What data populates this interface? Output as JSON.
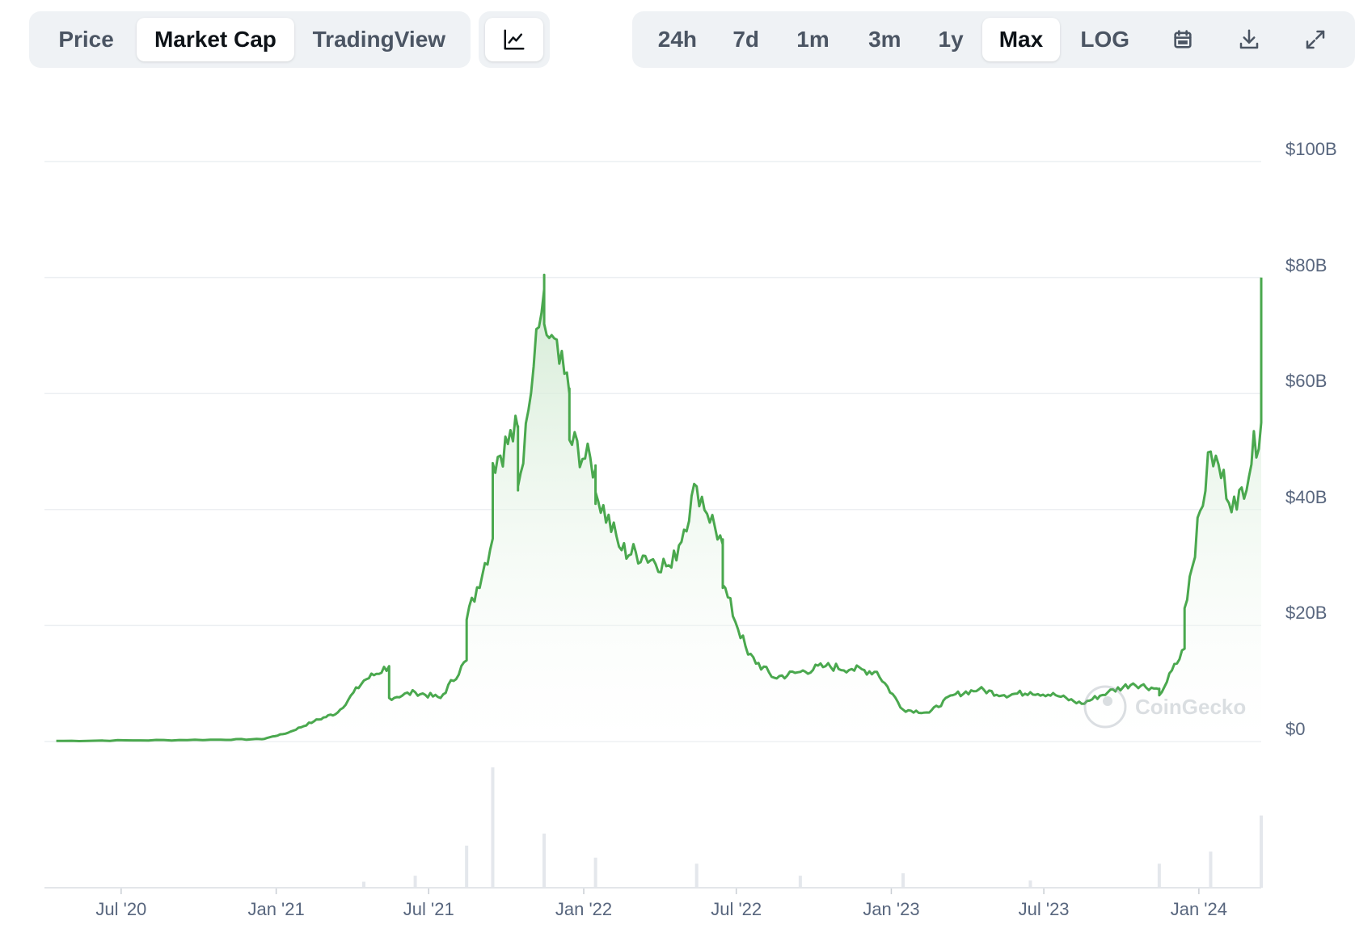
{
  "toolbar": {
    "tabs": [
      {
        "label": "Price",
        "active": false
      },
      {
        "label": "Market Cap",
        "active": true
      },
      {
        "label": "TradingView",
        "active": false
      }
    ],
    "chart_type_icon": "line-chart-icon",
    "ranges": [
      {
        "label": "24h",
        "active": false
      },
      {
        "label": "7d",
        "active": false
      },
      {
        "label": "1m",
        "active": false
      },
      {
        "label": "3m",
        "active": false
      },
      {
        "label": "1y",
        "active": false
      },
      {
        "label": "Max",
        "active": true
      },
      {
        "label": "LOG",
        "active": false
      }
    ],
    "icons": [
      "calendar-icon",
      "download-icon",
      "fullscreen-icon"
    ]
  },
  "watermark": {
    "text": "CoinGecko",
    "icon": "coingecko-logo"
  },
  "colors": {
    "line": "#4aa84e",
    "fill_top": "#cde8ce",
    "grid": "#eceff2",
    "text": "#58667e"
  },
  "chart_data": {
    "type": "area",
    "title": "",
    "xlabel": "",
    "ylabel": "",
    "ylim": [
      0,
      100
    ],
    "y_unit": "$B",
    "y_ticks": [
      "$0",
      "$20B",
      "$40B",
      "$60B",
      "$80B",
      "$100B"
    ],
    "x_ticks": [
      "Jul '20",
      "Jan '21",
      "Jul '21",
      "Jan '22",
      "Jul '22",
      "Jan '23",
      "Jul '23",
      "Jan '24"
    ],
    "grid": true,
    "series": [
      {
        "values_note": "market cap in $B; dates as YYYY-MM",
        "x": [
          "2020-04",
          "2020-07",
          "2020-10",
          "2020-12",
          "2021-01",
          "2021-02",
          "2021-03",
          "2021-04",
          "2021-05",
          "2021-05",
          "2021-06",
          "2021-07",
          "2021-08",
          "2021-08",
          "2021-09",
          "2021-09",
          "2021-10",
          "2021-10",
          "2021-11",
          "2021-11",
          "2021-12",
          "2021-12",
          "2022-01",
          "2022-01",
          "2022-02",
          "2022-03",
          "2022-04",
          "2022-05",
          "2022-06",
          "2022-06",
          "2022-07",
          "2022-08",
          "2022-09",
          "2022-10",
          "2022-11",
          "2022-12",
          "2023-01",
          "2023-02",
          "2023-03",
          "2023-04",
          "2023-05",
          "2023-06",
          "2023-07",
          "2023-08",
          "2023-09",
          "2023-10",
          "2023-11",
          "2023-11",
          "2023-12",
          "2023-12",
          "2024-01",
          "2024-02",
          "2024-03",
          "2024-03"
        ],
        "values": [
          0.1,
          0.2,
          0.3,
          0.4,
          1.5,
          3.5,
          5.0,
          10.5,
          13.0,
          7.5,
          8.5,
          7.5,
          14.0,
          21.0,
          35.0,
          48.0,
          54.0,
          44.0,
          78.0,
          72.0,
          60.0,
          52.0,
          47.0,
          43.0,
          33.0,
          32.0,
          30.0,
          44.0,
          34.0,
          27.0,
          15.0,
          11.0,
          12.0,
          13.0,
          12.5,
          12.0,
          5.5,
          5.0,
          8.0,
          9.0,
          8.0,
          8.5,
          8.0,
          6.5,
          8.5,
          10.0,
          9.0,
          8.0,
          16.0,
          23.0,
          50.0,
          40.0,
          55.0,
          80.0
        ]
      }
    ],
    "volume": {
      "note": "relative trading volume bars, 0-1",
      "x": [
        "2021-04",
        "2021-06",
        "2021-08",
        "2021-09",
        "2021-11",
        "2022-01",
        "2022-05",
        "2022-09",
        "2023-01",
        "2023-06",
        "2023-11",
        "2024-01",
        "2024-03"
      ],
      "values": [
        0.05,
        0.1,
        0.35,
        1.0,
        0.45,
        0.25,
        0.2,
        0.1,
        0.12,
        0.06,
        0.2,
        0.3,
        0.6
      ]
    }
  }
}
